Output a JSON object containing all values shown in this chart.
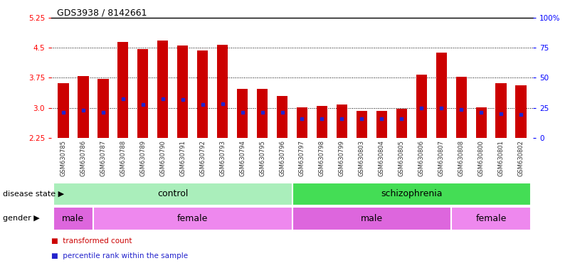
{
  "title": "GDS3938 / 8142661",
  "samples": [
    "GSM630785",
    "GSM630786",
    "GSM630787",
    "GSM630788",
    "GSM630789",
    "GSM630790",
    "GSM630791",
    "GSM630792",
    "GSM630793",
    "GSM630794",
    "GSM630795",
    "GSM630796",
    "GSM630797",
    "GSM630798",
    "GSM630799",
    "GSM630803",
    "GSM630804",
    "GSM630805",
    "GSM630806",
    "GSM630807",
    "GSM630808",
    "GSM630800",
    "GSM630801",
    "GSM630802"
  ],
  "bar_tops": [
    3.62,
    3.8,
    3.72,
    4.65,
    4.46,
    4.68,
    4.55,
    4.44,
    4.57,
    3.48,
    3.47,
    3.3,
    3.01,
    3.05,
    3.08,
    2.93,
    2.93,
    2.97,
    3.82,
    4.38,
    3.77,
    3.02,
    3.62,
    3.57
  ],
  "blue_positions": [
    2.88,
    2.94,
    2.88,
    3.22,
    3.08,
    3.22,
    3.2,
    3.08,
    3.1,
    2.88,
    2.88,
    2.88,
    2.72,
    2.72,
    2.72,
    2.72,
    2.72,
    2.72,
    3.0,
    3.0,
    2.96,
    2.88,
    2.86,
    2.84
  ],
  "y_min": 2.25,
  "y_max": 5.25,
  "y_ticks_left": [
    2.25,
    3.0,
    3.75,
    4.5,
    5.25
  ],
  "y_ticks_right_vals": [
    0,
    25,
    50,
    75,
    100
  ],
  "y_ticks_right_labels": [
    "0",
    "25",
    "50",
    "75",
    "100%"
  ],
  "bar_color": "#cc0000",
  "blue_color": "#2222cc",
  "xticklabel_bg": "#cccccc",
  "disease_state_groups": [
    {
      "label": "control",
      "start": 0,
      "end": 11,
      "color": "#aaeebb"
    },
    {
      "label": "schizophrenia",
      "start": 12,
      "end": 23,
      "color": "#44dd55"
    }
  ],
  "gender_groups": [
    {
      "label": "male",
      "start": 0,
      "end": 1,
      "color": "#dd66dd"
    },
    {
      "label": "female",
      "start": 2,
      "end": 11,
      "color": "#ee88ee"
    },
    {
      "label": "male",
      "start": 12,
      "end": 19,
      "color": "#dd66dd"
    },
    {
      "label": "female",
      "start": 20,
      "end": 23,
      "color": "#ee88ee"
    }
  ],
  "legend_items": [
    {
      "label": "transformed count",
      "color": "#cc0000"
    },
    {
      "label": "percentile rank within the sample",
      "color": "#2222cc"
    }
  ],
  "title_fontsize": 9,
  "tick_fontsize": 7.5,
  "label_fontsize": 8.5,
  "row_label_fontsize": 8,
  "row_text_fontsize": 9
}
